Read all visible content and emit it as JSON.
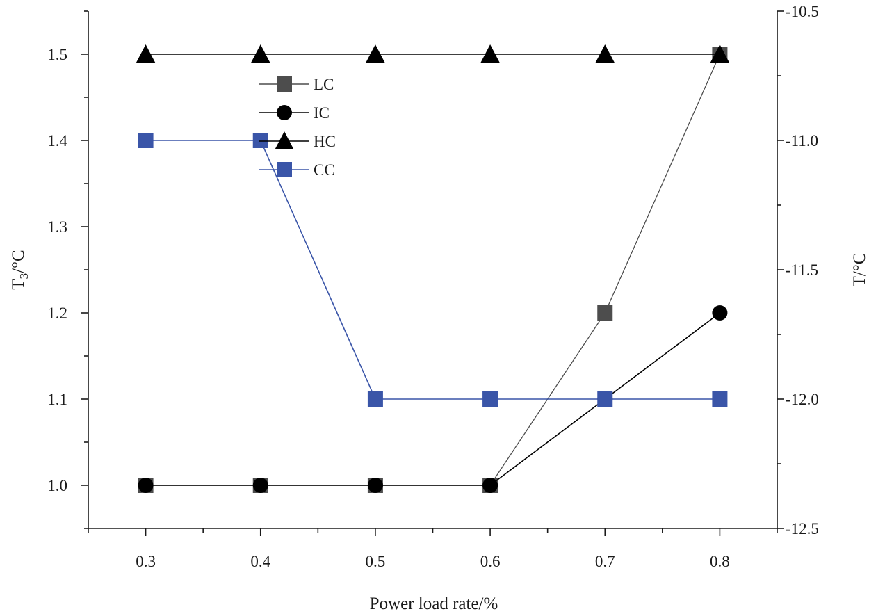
{
  "chart_data": {
    "type": "line",
    "title": "",
    "xlabel": "Power load rate/%",
    "ylabel_left_base": "T",
    "ylabel_left_sub": "3",
    "ylabel_left_unit": "/°C",
    "ylabel_right": "T/°C",
    "x": [
      0.3,
      0.4,
      0.5,
      0.6,
      0.7,
      0.8
    ],
    "xlim": [
      0.25,
      0.85
    ],
    "xticks": [
      "0.3",
      "0.4",
      "0.5",
      "0.6",
      "0.7",
      "0.8"
    ],
    "ylim_left": [
      0.95,
      1.55
    ],
    "yticks_left": [
      "1.0",
      "1.1",
      "1.2",
      "1.3",
      "1.4",
      "1.5"
    ],
    "ylim_right": [
      -12.5,
      -10.5
    ],
    "yticks_right": [
      "-12.5",
      "-12.0",
      "-11.5",
      "-11.0",
      "-10.5"
    ],
    "legend_position": "top-left",
    "series": [
      {
        "name": "LC",
        "values": [
          1.0,
          1.0,
          1.0,
          1.0,
          1.2,
          1.5
        ],
        "color": "#4d4d4d",
        "marker": "square"
      },
      {
        "name": "IC",
        "values": [
          1.0,
          1.0,
          1.0,
          1.0,
          1.1,
          1.2
        ],
        "color": "#000000",
        "marker": "circle"
      },
      {
        "name": "HC",
        "values": [
          1.5,
          1.5,
          1.5,
          1.5,
          1.5,
          1.5
        ],
        "color": "#000000",
        "marker": "triangle"
      },
      {
        "name": "CC",
        "values": [
          1.4,
          1.4,
          1.1,
          1.1,
          1.1,
          1.1
        ],
        "color": "#3a55a8",
        "marker": "square"
      }
    ]
  }
}
